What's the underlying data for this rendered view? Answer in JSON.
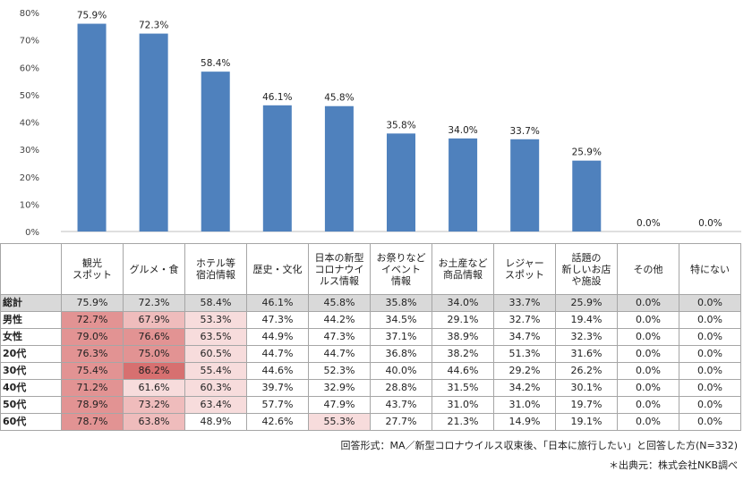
{
  "chart_data": {
    "type": "bar",
    "categories": [
      "観光スポット",
      "グルメ・食",
      "ホテル等宿泊情報",
      "歴史・文化",
      "日本の新型コロナウイルス情報",
      "お祭りなどイベント情報",
      "お土産など商品情報",
      "レジャースポット",
      "話題の新しいお店や施設",
      "その他",
      "特にない"
    ],
    "values": [
      75.9,
      72.3,
      58.4,
      46.1,
      45.8,
      35.8,
      34.0,
      33.7,
      25.9,
      0.0,
      0.0
    ],
    "value_labels": [
      "75.9%",
      "72.3%",
      "58.4%",
      "46.1%",
      "45.8%",
      "35.8%",
      "34.0%",
      "33.7%",
      "25.9%",
      "0.0%",
      "0.0%"
    ],
    "yticks": [
      "0%",
      "10%",
      "20%",
      "30%",
      "40%",
      "50%",
      "60%",
      "70%",
      "80%"
    ],
    "ylim": [
      0,
      80
    ],
    "bar_color": "#4f81bd",
    "grid": false
  },
  "table": {
    "headers": [
      [
        "観光",
        "スポット"
      ],
      [
        "グルメ・食"
      ],
      [
        "ホテル等",
        "宿泊情報"
      ],
      [
        "歴史・文化"
      ],
      [
        "日本の新型",
        "コロナウイ",
        "ルス情報"
      ],
      [
        "お祭りなど",
        "イベント",
        "情報"
      ],
      [
        "お土産など",
        "商品情報"
      ],
      [
        "レジャー",
        "スポット"
      ],
      [
        "話題の",
        "新しいお店",
        "や施設"
      ],
      [
        "その他"
      ],
      [
        "特にない"
      ]
    ],
    "rows": [
      {
        "label": "総計",
        "total": true,
        "cells": [
          "75.9%",
          "72.3%",
          "58.4%",
          "46.1%",
          "45.8%",
          "35.8%",
          "34.0%",
          "33.7%",
          "25.9%",
          "0.0%",
          "0.0%"
        ],
        "shade": [
          0,
          0,
          0,
          0,
          0,
          0,
          0,
          0,
          0,
          0,
          0
        ]
      },
      {
        "label": "男性",
        "cells": [
          "72.7%",
          "67.9%",
          "53.3%",
          "47.3%",
          "44.2%",
          "34.5%",
          "29.1%",
          "32.7%",
          "19.4%",
          "0.0%",
          "0.0%"
        ],
        "shade": [
          3,
          2,
          1,
          0,
          0,
          0,
          0,
          0,
          0,
          0,
          0
        ]
      },
      {
        "label": "女性",
        "cells": [
          "79.0%",
          "76.6%",
          "63.5%",
          "44.9%",
          "47.3%",
          "37.1%",
          "38.9%",
          "34.7%",
          "32.3%",
          "0.0%",
          "0.0%"
        ],
        "shade": [
          3,
          3,
          1,
          0,
          0,
          0,
          0,
          0,
          0,
          0,
          0
        ]
      },
      {
        "label": "20代",
        "cells": [
          "76.3%",
          "75.0%",
          "60.5%",
          "44.7%",
          "44.7%",
          "36.8%",
          "38.2%",
          "51.3%",
          "31.6%",
          "0.0%",
          "0.0%"
        ],
        "shade": [
          3,
          3,
          1,
          0,
          0,
          0,
          0,
          0,
          0,
          0,
          0
        ]
      },
      {
        "label": "30代",
        "cells": [
          "75.4%",
          "86.2%",
          "55.4%",
          "44.6%",
          "52.3%",
          "40.0%",
          "44.6%",
          "29.2%",
          "26.2%",
          "0.0%",
          "0.0%"
        ],
        "shade": [
          3,
          4,
          1,
          0,
          0,
          0,
          0,
          0,
          0,
          0,
          0
        ]
      },
      {
        "label": "40代",
        "cells": [
          "71.2%",
          "61.6%",
          "60.3%",
          "39.7%",
          "32.9%",
          "28.8%",
          "31.5%",
          "34.2%",
          "30.1%",
          "0.0%",
          "0.0%"
        ],
        "shade": [
          3,
          1,
          1,
          0,
          0,
          0,
          0,
          0,
          0,
          0,
          0
        ]
      },
      {
        "label": "50代",
        "cells": [
          "78.9%",
          "73.2%",
          "63.4%",
          "57.7%",
          "47.9%",
          "43.7%",
          "31.0%",
          "31.0%",
          "19.7%",
          "0.0%",
          "0.0%"
        ],
        "shade": [
          3,
          2,
          1,
          0,
          0,
          0,
          0,
          0,
          0,
          0,
          0
        ]
      },
      {
        "label": "60代",
        "cells": [
          "78.7%",
          "63.8%",
          "48.9%",
          "42.6%",
          "55.3%",
          "27.7%",
          "21.3%",
          "14.9%",
          "19.1%",
          "0.0%",
          "0.0%"
        ],
        "shade": [
          3,
          2,
          0,
          0,
          1,
          0,
          0,
          0,
          0,
          0,
          0
        ]
      }
    ],
    "shade_colors": [
      "#ffffff",
      "#f7dcdc",
      "#efbcbc",
      "#e29393",
      "#d77070"
    ]
  },
  "notes": {
    "method": "回答形式：MA／新型コロナウイルス収束後、「日本に旅行したい」と回答した方(N=332)",
    "source": "＊出典元：株式会社NKB調べ"
  }
}
